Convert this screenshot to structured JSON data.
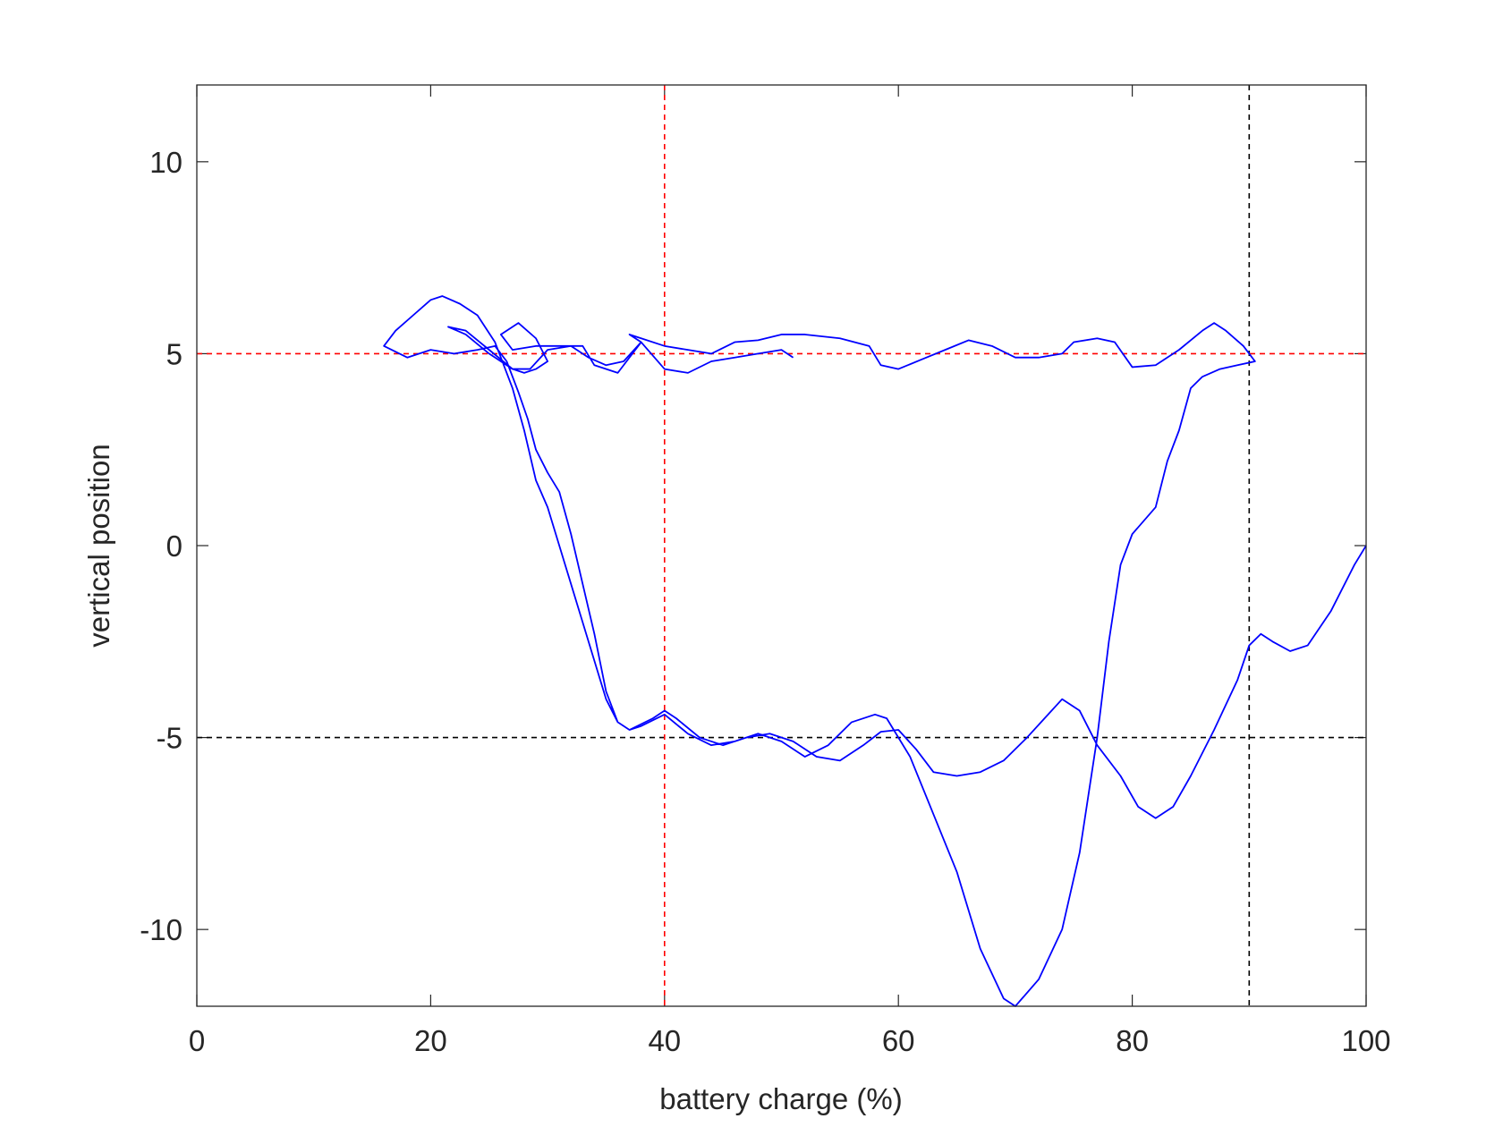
{
  "chart_data": {
    "type": "line",
    "xlabel": "battery charge (%)",
    "ylabel": "vertical position",
    "xlim": [
      0,
      100
    ],
    "xticks": [
      0,
      20,
      40,
      60,
      80,
      100
    ],
    "ylim": [
      -12,
      12
    ],
    "yticks": [
      -10,
      -5,
      0,
      5,
      10
    ],
    "grid": false,
    "series": [
      {
        "color": "#0000ff",
        "x": [
          100,
          99,
          97,
          95,
          93.5,
          92,
          91,
          90,
          89,
          87,
          85,
          83.5,
          82,
          80.5,
          79,
          77,
          75.5,
          74,
          72.5,
          71,
          69,
          67,
          65,
          63,
          61.5,
          60,
          58.5,
          57,
          55,
          53,
          51,
          49,
          47,
          45,
          43,
          41,
          40,
          39,
          37,
          36,
          35,
          34,
          33,
          32,
          31,
          30,
          29,
          28.3,
          27.5,
          26.5,
          25.5,
          24,
          22,
          20,
          18,
          16,
          17,
          18.5,
          20,
          21,
          22.5,
          24,
          25.5,
          26,
          27,
          28,
          29,
          30,
          31,
          32.5,
          34,
          35,
          36,
          37,
          38,
          40,
          42,
          44,
          46,
          48,
          50,
          52,
          54,
          56,
          58,
          59,
          61,
          63,
          65,
          67,
          69,
          70,
          72,
          74,
          75.5,
          77,
          78,
          79,
          80,
          82,
          83,
          84,
          85,
          86,
          87.5,
          89,
          90.5,
          89.5,
          88,
          87,
          86,
          84,
          82,
          80,
          78.5,
          77,
          75,
          74,
          72,
          70,
          68,
          66,
          64,
          62,
          60,
          58.5,
          57.5,
          55,
          52,
          50,
          48,
          46,
          44,
          42,
          40,
          38,
          37,
          38,
          36,
          34,
          33,
          31,
          29,
          27,
          26,
          27.5,
          29,
          30,
          29,
          28,
          27,
          25,
          23,
          21.5,
          23,
          25,
          27,
          28.5,
          30,
          32,
          33.5,
          35,
          36.5,
          38,
          40,
          42,
          44,
          46,
          48,
          50,
          51
        ],
        "y": [
          0,
          -0.5,
          -1.7,
          -2.6,
          -2.75,
          -2.5,
          -2.3,
          -2.6,
          -3.5,
          -4.8,
          -6,
          -6.8,
          -7.1,
          -6.8,
          -6,
          -5.2,
          -4.3,
          -4,
          -4.5,
          -5,
          -5.6,
          -5.9,
          -6,
          -5.9,
          -5.3,
          -4.8,
          -4.85,
          -5.2,
          -5.6,
          -5.5,
          -5.1,
          -4.9,
          -5,
          -5.2,
          -5,
          -4.5,
          -4.3,
          -4.5,
          -4.8,
          -4.6,
          -3.8,
          -2.3,
          -1,
          0.3,
          1.4,
          1.9,
          2.5,
          3.3,
          4,
          4.8,
          5.2,
          5.1,
          5,
          5.1,
          4.9,
          5.2,
          5.6,
          6,
          6.4,
          6.5,
          6.3,
          6,
          5.3,
          4.9,
          4.1,
          3,
          1.7,
          1,
          0,
          -1.5,
          -3,
          -4,
          -4.6,
          -4.8,
          -4.7,
          -4.4,
          -4.9,
          -5.2,
          -5.1,
          -4.9,
          -5.1,
          -5.5,
          -5.2,
          -4.6,
          -4.4,
          -4.5,
          -5.5,
          -7,
          -8.5,
          -10.5,
          -11.8,
          -12,
          -11.3,
          -10,
          -8,
          -5,
          -2.5,
          -0.5,
          0.3,
          1,
          2.2,
          3,
          4.1,
          4.4,
          4.6,
          4.7,
          4.8,
          5.2,
          5.6,
          5.8,
          5.6,
          5.1,
          4.7,
          4.65,
          5.3,
          5.4,
          5.3,
          5,
          4.9,
          4.9,
          5.2,
          5.35,
          5.1,
          4.85,
          4.6,
          4.7,
          5.2,
          5.4,
          5.5,
          5.5,
          5.35,
          5.3,
          5,
          5.1,
          5.2,
          5.4,
          5.5,
          5.3,
          4.5,
          4.7,
          5.2,
          5.2,
          5.2,
          5.1,
          5.5,
          5.8,
          5.4,
          4.8,
          4.6,
          4.5,
          4.6,
          5.1,
          5.6,
          5.7,
          5.5,
          5,
          4.6,
          4.6,
          5.1,
          5.2,
          4.9,
          4.7,
          4.8,
          5.3,
          4.6,
          4.5,
          4.8,
          4.9,
          5.0,
          5.1,
          4.9
        ]
      }
    ],
    "vlines": [
      {
        "x": 40,
        "color": "#ff0000"
      },
      {
        "x": 90,
        "color": "#000000"
      }
    ],
    "hlines": [
      {
        "y": 5,
        "color": "#ff0000"
      },
      {
        "y": -5,
        "color": "#000000"
      }
    ]
  }
}
